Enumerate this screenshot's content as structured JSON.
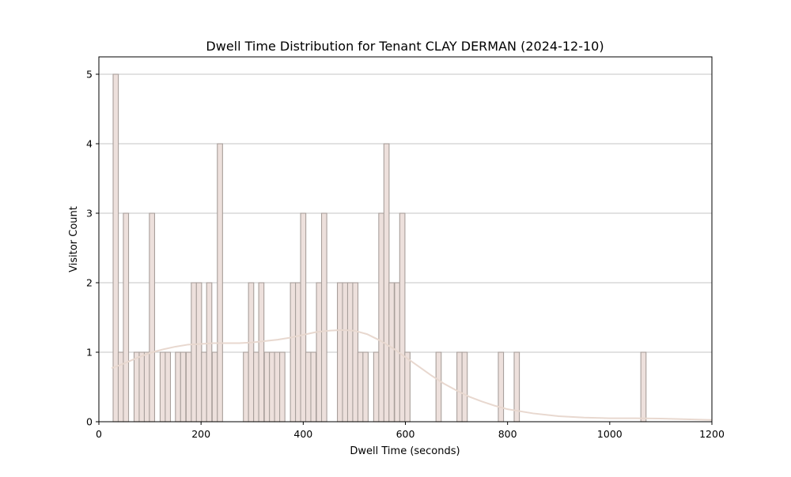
{
  "chart_data": {
    "type": "bar",
    "title": "Dwell Time Distribution for Tenant CLAY DERMAN (2024-12-10)",
    "xlabel": "Dwell Time (seconds)",
    "ylabel": "Visitor Count",
    "xlim": [
      0,
      1200
    ],
    "ylim": [
      0,
      5.25
    ],
    "xticks": [
      0,
      200,
      400,
      600,
      800,
      1000,
      1200
    ],
    "yticks": [
      0,
      1,
      2,
      3,
      4,
      5
    ],
    "grid": "y-axis horizontal lines",
    "bin_width": 10.2,
    "bar_color": "#ede0dc",
    "bar_edge_color": "#a89f9b",
    "kde_color": "#e8d8cf",
    "bins": [
      {
        "x": 33,
        "count": 5
      },
      {
        "x": 43,
        "count": 1
      },
      {
        "x": 53,
        "count": 3
      },
      {
        "x": 74,
        "count": 1
      },
      {
        "x": 84,
        "count": 1
      },
      {
        "x": 94,
        "count": 1
      },
      {
        "x": 104,
        "count": 3
      },
      {
        "x": 125,
        "count": 1
      },
      {
        "x": 135,
        "count": 1
      },
      {
        "x": 155,
        "count": 1
      },
      {
        "x": 165,
        "count": 1
      },
      {
        "x": 176,
        "count": 1
      },
      {
        "x": 186,
        "count": 2
      },
      {
        "x": 196,
        "count": 2
      },
      {
        "x": 206,
        "count": 1
      },
      {
        "x": 216,
        "count": 2
      },
      {
        "x": 227,
        "count": 1
      },
      {
        "x": 237,
        "count": 4
      },
      {
        "x": 288,
        "count": 1
      },
      {
        "x": 298,
        "count": 2
      },
      {
        "x": 308,
        "count": 1
      },
      {
        "x": 318,
        "count": 2
      },
      {
        "x": 329,
        "count": 1
      },
      {
        "x": 339,
        "count": 1
      },
      {
        "x": 349,
        "count": 1
      },
      {
        "x": 359,
        "count": 1
      },
      {
        "x": 380,
        "count": 2
      },
      {
        "x": 390,
        "count": 2
      },
      {
        "x": 400,
        "count": 3
      },
      {
        "x": 410,
        "count": 1
      },
      {
        "x": 420,
        "count": 1
      },
      {
        "x": 431,
        "count": 2
      },
      {
        "x": 441,
        "count": 3
      },
      {
        "x": 472,
        "count": 2
      },
      {
        "x": 482,
        "count": 2
      },
      {
        "x": 492,
        "count": 2
      },
      {
        "x": 502,
        "count": 2
      },
      {
        "x": 512,
        "count": 1
      },
      {
        "x": 522,
        "count": 1
      },
      {
        "x": 543,
        "count": 1
      },
      {
        "x": 553,
        "count": 3
      },
      {
        "x": 563,
        "count": 4
      },
      {
        "x": 573,
        "count": 2
      },
      {
        "x": 584,
        "count": 2
      },
      {
        "x": 594,
        "count": 3
      },
      {
        "x": 604,
        "count": 1
      },
      {
        "x": 665,
        "count": 1
      },
      {
        "x": 706,
        "count": 1
      },
      {
        "x": 716,
        "count": 1
      },
      {
        "x": 787,
        "count": 1
      },
      {
        "x": 818,
        "count": 1
      },
      {
        "x": 1066,
        "count": 1
      }
    ],
    "kde": {
      "x": [
        25,
        50,
        75,
        100,
        125,
        150,
        175,
        200,
        225,
        250,
        275,
        300,
        325,
        350,
        375,
        400,
        425,
        450,
        475,
        500,
        525,
        550,
        575,
        600,
        625,
        650,
        675,
        700,
        725,
        750,
        775,
        800,
        850,
        900,
        950,
        1000,
        1050,
        1100,
        1150,
        1200
      ],
      "y": [
        0.77,
        0.84,
        0.92,
        0.99,
        1.04,
        1.08,
        1.11,
        1.12,
        1.13,
        1.13,
        1.13,
        1.14,
        1.16,
        1.18,
        1.21,
        1.25,
        1.29,
        1.31,
        1.32,
        1.31,
        1.26,
        1.17,
        1.06,
        0.93,
        0.8,
        0.67,
        0.55,
        0.45,
        0.36,
        0.29,
        0.23,
        0.18,
        0.12,
        0.08,
        0.06,
        0.05,
        0.05,
        0.045,
        0.035,
        0.025
      ]
    }
  }
}
